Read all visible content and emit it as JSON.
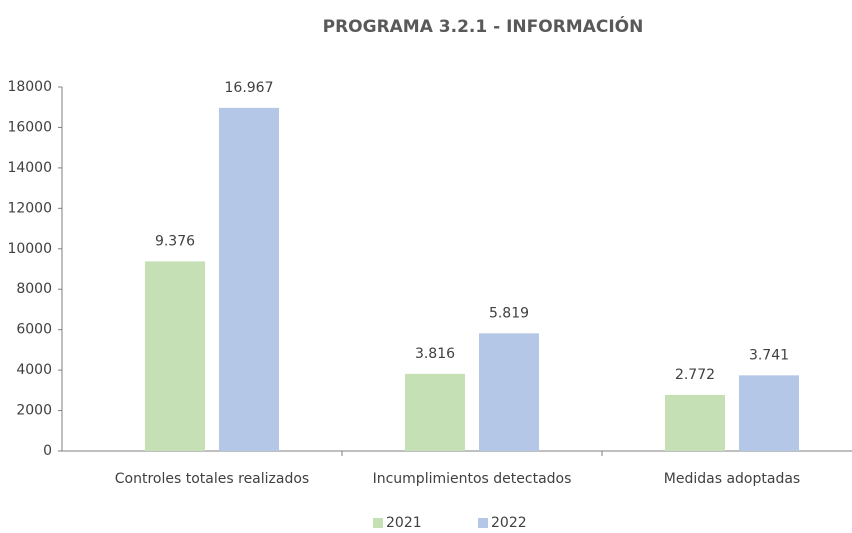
{
  "chart_data": {
    "type": "bar",
    "title": "PROGRAMA 3.2.1 - INFORMACIÓN",
    "categories": [
      "Controles totales realizados",
      "Incumplimientos detectados",
      "Medidas adoptadas"
    ],
    "series": [
      {
        "name": "2021",
        "color": "#c5e0b4",
        "values": [
          9376,
          3816,
          2772
        ],
        "value_labels": [
          "9.376",
          "3.816",
          "2.772"
        ]
      },
      {
        "name": "2022",
        "color": "#b4c7e7",
        "values": [
          16967,
          5819,
          3741
        ],
        "value_labels": [
          "16.967",
          "5.819",
          "3.741"
        ]
      }
    ],
    "ylim": [
      0,
      18000
    ],
    "yticks": [
      0,
      2000,
      4000,
      6000,
      8000,
      10000,
      12000,
      14000,
      16000,
      18000
    ],
    "grid": false,
    "legend": "bottom"
  }
}
